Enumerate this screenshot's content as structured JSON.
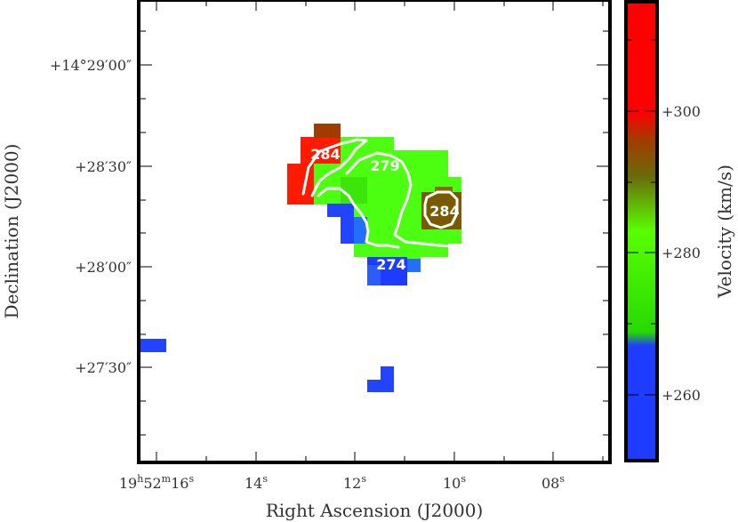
{
  "chart_data": {
    "type": "heatmap",
    "xlabel": "Right Ascension (J2000)",
    "ylabel": "Declination (J2000)",
    "colorbar_label": "Velocity (km/s)",
    "x_ticks": [
      {
        "main": "19",
        "sup1": "h",
        "mid": "52",
        "sup2": "m",
        "sec": "16",
        "sup3": "s"
      },
      {
        "sec": "14",
        "sup3": "s"
      },
      {
        "sec": "12",
        "sup3": "s"
      },
      {
        "sec": "10",
        "sup3": "s"
      },
      {
        "sec": "08",
        "sup3": "s"
      }
    ],
    "y_ticks": [
      "+14°29′00″",
      "+28′30″",
      "+28′00″",
      "+27′30″"
    ],
    "colorbar_ticks": [
      "+260",
      "+280",
      "+300"
    ],
    "colorbar_range_kms": [
      250,
      315
    ],
    "colormap": [
      "#1e3cff",
      "#1e3cff",
      "#27d900",
      "#58ff00",
      "#6a6a0a",
      "#a33a00",
      "#ff0000",
      "#ff0000"
    ],
    "contour_labels": [
      "284",
      "279",
      "284",
      "274"
    ],
    "contour_levels_kms": [
      274,
      279,
      284
    ],
    "colors": {
      "red": "#ff0000",
      "brown": "#a13c00",
      "olive": "#7a5a00",
      "green": "#4cff10",
      "blue": "#2244ff"
    }
  }
}
